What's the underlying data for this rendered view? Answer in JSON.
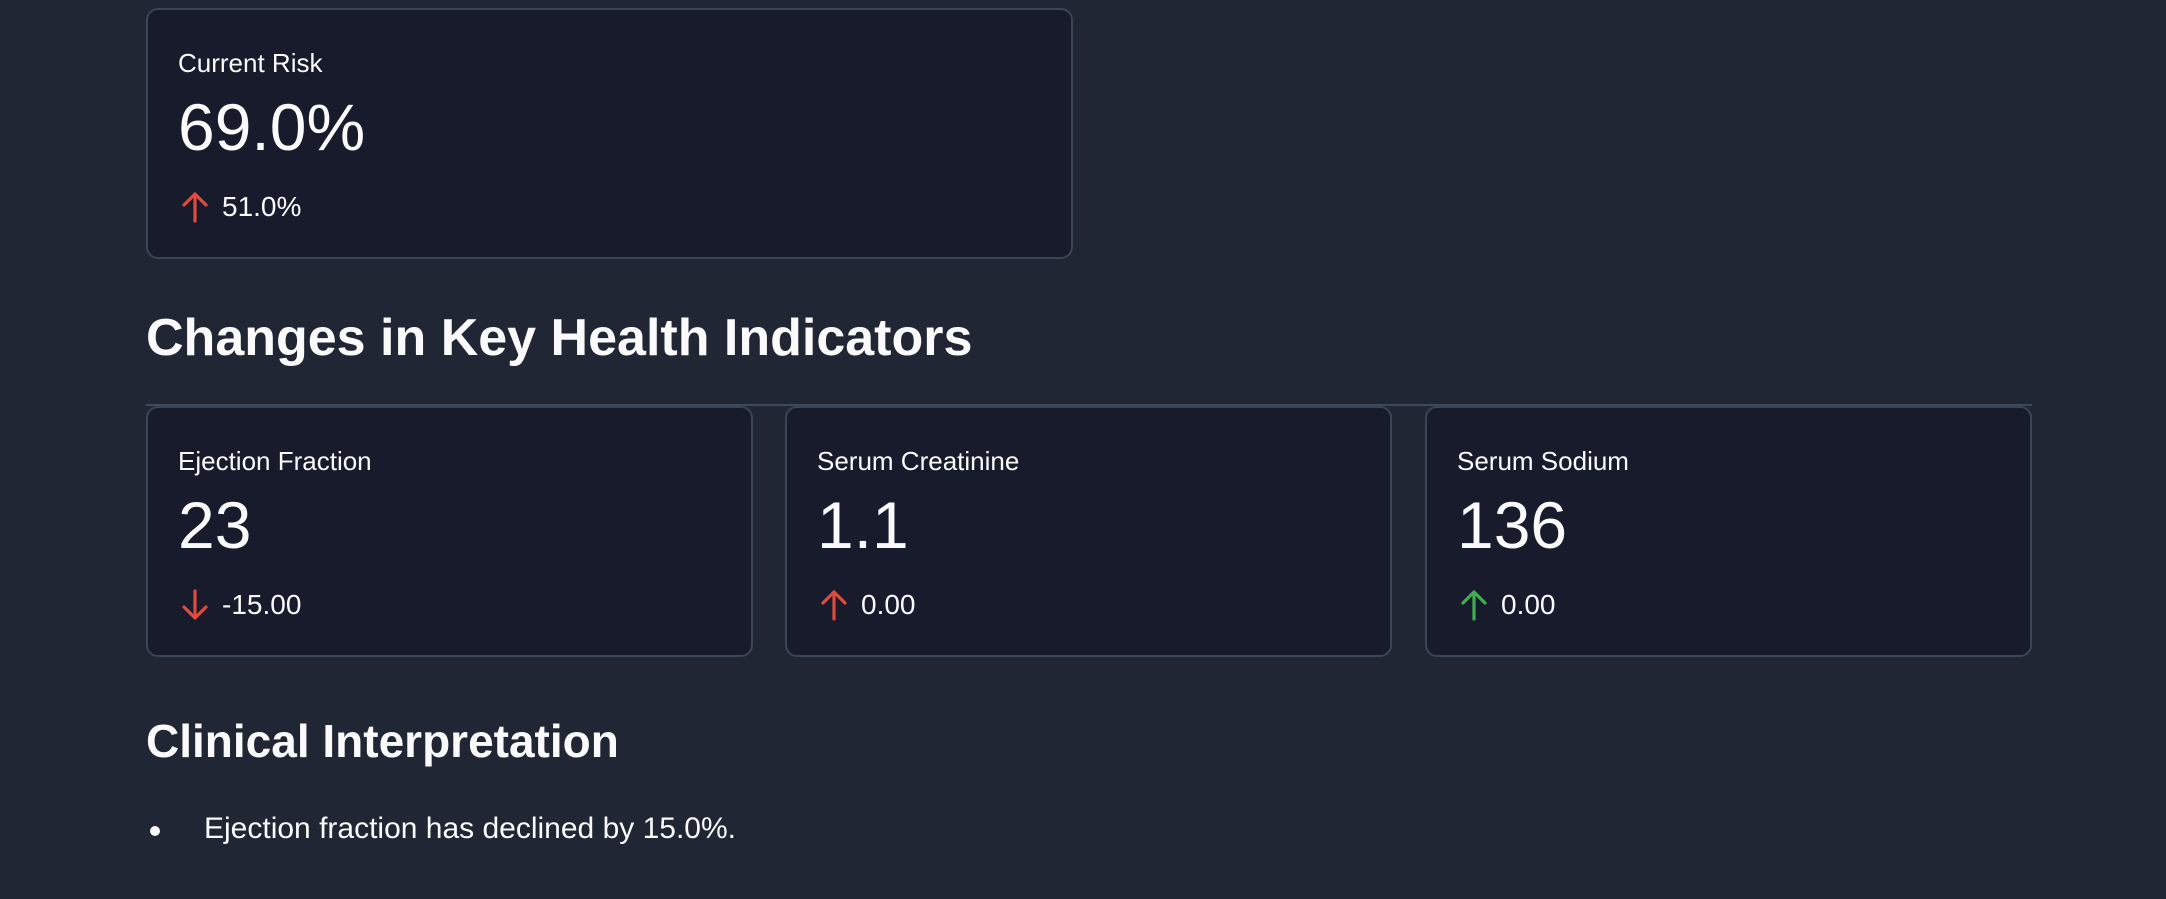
{
  "current_risk": {
    "label": "Current Risk",
    "value": "69.0%",
    "delta": "51.0%",
    "delta_direction": "up",
    "delta_color": "#e04b3d"
  },
  "changes_section": {
    "heading": "Changes in Key Health Indicators",
    "metrics": [
      {
        "label": "Ejection Fraction",
        "value": "23",
        "delta": "-15.00",
        "delta_direction": "down",
        "delta_color": "#e04b3d"
      },
      {
        "label": "Serum Creatinine",
        "value": "1.1",
        "delta": "0.00",
        "delta_direction": "up",
        "delta_color": "#e04b3d"
      },
      {
        "label": "Serum Sodium",
        "value": "136",
        "delta": "0.00",
        "delta_direction": "up",
        "delta_color": "#3fae4f"
      }
    ]
  },
  "clinical_section": {
    "heading": "Clinical Interpretation",
    "bullets": [
      "Ejection fraction has declined by 15.0%."
    ]
  },
  "colors": {
    "background": "#212634",
    "card_background": "#171b2c",
    "card_border": "#3a4658",
    "text": "#fafafa"
  }
}
